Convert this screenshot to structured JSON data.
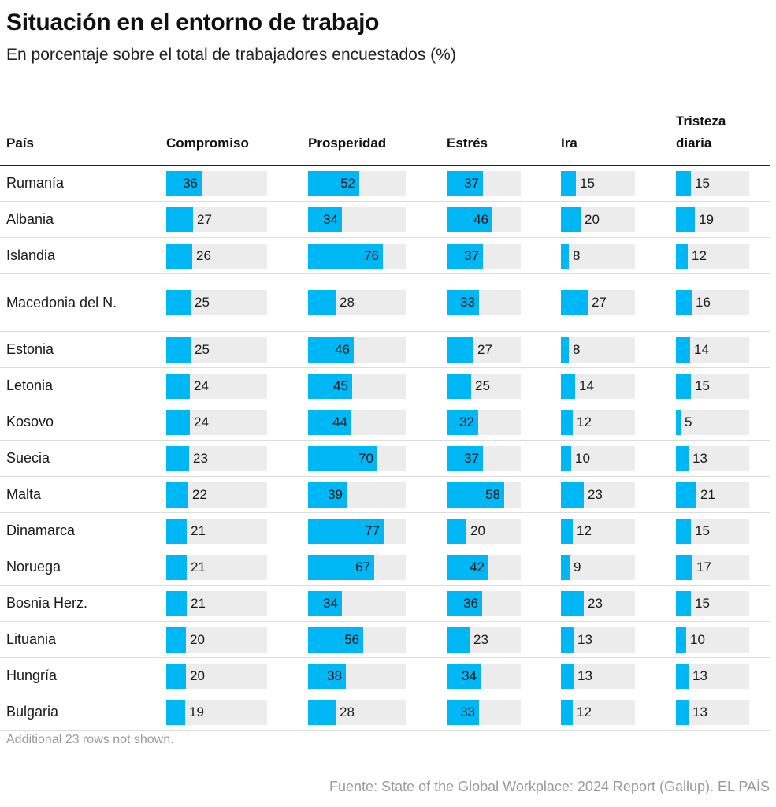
{
  "title": "Situación en el entorno de trabajo",
  "subtitle": "En porcentaje sobre el total de trabajadores encuestados (%)",
  "columns": {
    "country": "País",
    "metrics": [
      "Compromiso",
      "Prosperidad",
      "Estrés",
      "Ira",
      "Tristeza diaria"
    ]
  },
  "note": "Additional 23 rows not shown.",
  "source": "Fuente: State of the Global Workplace: 2024 Report (Gallup). EL PAÍS",
  "colors": {
    "bar": "#00b7f5",
    "track": "#ececec"
  },
  "chart_data": {
    "type": "table",
    "title": "Situación en el entorno de trabajo",
    "subtitle": "En porcentaje sobre el total de trabajadores encuestados (%)",
    "columns": [
      "País",
      "Compromiso",
      "Prosperidad",
      "Estrés",
      "Ira",
      "Tristeza diaria"
    ],
    "rows": [
      {
        "country": "Rumanía",
        "values": [
          36,
          52,
          37,
          15,
          15
        ]
      },
      {
        "country": "Albania",
        "values": [
          27,
          34,
          46,
          20,
          19
        ]
      },
      {
        "country": "Islandia",
        "values": [
          26,
          76,
          37,
          8,
          12
        ]
      },
      {
        "country": "Macedonia del N.",
        "values": [
          25,
          28,
          33,
          27,
          16
        ]
      },
      {
        "country": "Estonia",
        "values": [
          25,
          46,
          27,
          8,
          14
        ]
      },
      {
        "country": "Letonia",
        "values": [
          24,
          45,
          25,
          14,
          15
        ]
      },
      {
        "country": "Kosovo",
        "values": [
          24,
          44,
          32,
          12,
          5
        ]
      },
      {
        "country": "Suecia",
        "values": [
          23,
          70,
          37,
          10,
          13
        ]
      },
      {
        "country": "Malta",
        "values": [
          22,
          39,
          58,
          23,
          21
        ]
      },
      {
        "country": "Dinamarca",
        "values": [
          21,
          77,
          20,
          12,
          15
        ]
      },
      {
        "country": "Noruega",
        "values": [
          21,
          67,
          42,
          9,
          17
        ]
      },
      {
        "country": "Bosnia Herz.",
        "values": [
          21,
          34,
          36,
          23,
          15
        ]
      },
      {
        "country": "Lituania",
        "values": [
          20,
          56,
          23,
          13,
          10
        ]
      },
      {
        "country": "Hungría",
        "values": [
          20,
          38,
          34,
          13,
          13
        ]
      },
      {
        "country": "Bulgaria",
        "values": [
          19,
          28,
          33,
          12,
          13
        ]
      }
    ]
  }
}
